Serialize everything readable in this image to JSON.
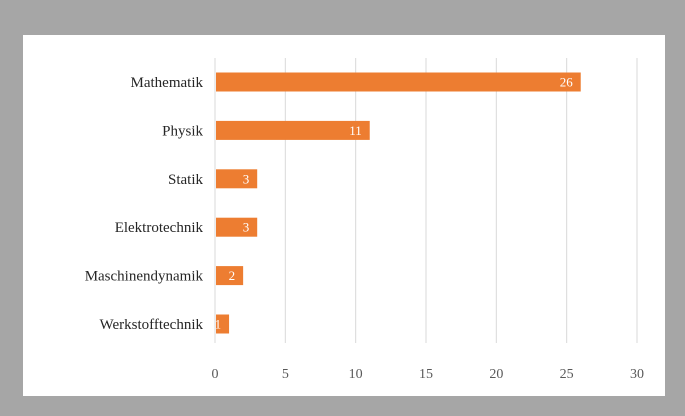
{
  "chart_data": {
    "type": "bar",
    "orientation": "horizontal",
    "categories": [
      "Mathematik",
      "Physik",
      "Statik",
      "Elektrotechnik",
      "Maschinendynamik",
      "Werkstofftechnik"
    ],
    "values": [
      26,
      11,
      3,
      3,
      2,
      1
    ],
    "xlim": [
      0,
      30
    ],
    "xticks": [
      0,
      5,
      10,
      15,
      20,
      25,
      30
    ],
    "grid": "vertical",
    "data_labels": true,
    "colors": {
      "bar": "#ed7d31",
      "grid": "#d9d9d9",
      "background": "#ffffff",
      "frame": "#a6a6a6"
    }
  }
}
